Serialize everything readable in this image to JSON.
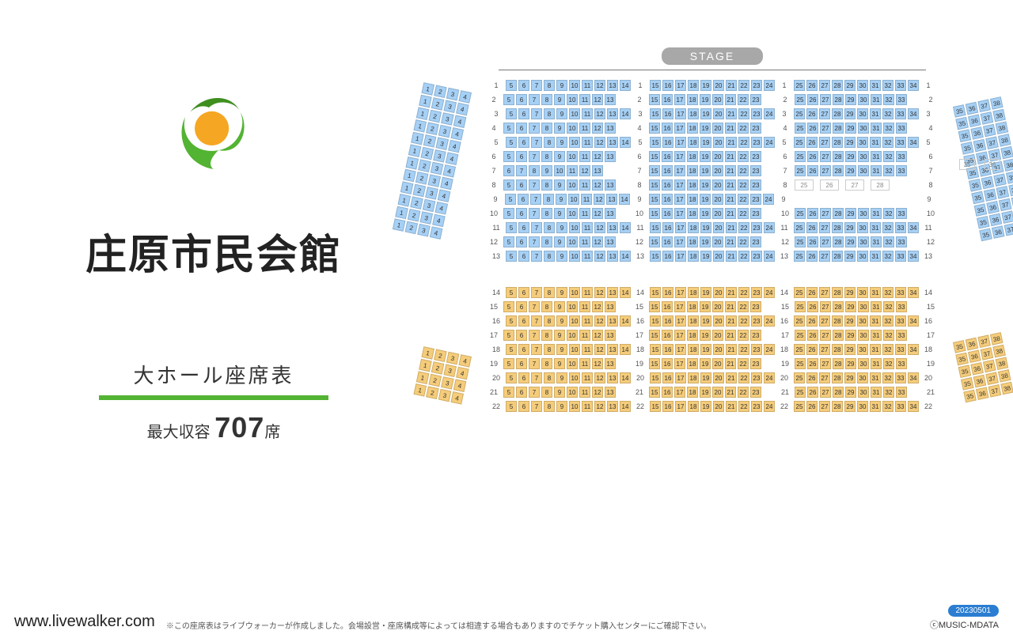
{
  "venue_name": "庄原市民会館",
  "subtitle": "大ホール座席表",
  "capacity_label": "最大収容",
  "capacity_value": "707",
  "capacity_unit": "席",
  "stage_label": "STAGE",
  "site_url": "www.livewalker.com",
  "footer_note": "※この座席表はライブウォーカーが作成しました。会場設営・座席構成等によっては相違する場合もありますのでチケット購入センターにご確認下さい。",
  "date_badge": "20230501",
  "copyright": "ⓒMUSIC-MDATA",
  "colors": {
    "accent_green": "#53b332",
    "logo_orange": "#f5a623",
    "logo_dark_green": "#3f8f1f",
    "section1_seat": "#a6d0f5",
    "section2_seat": "#f5cc7a",
    "seat_border": "#5a8fc0",
    "stage_badge": "#a8a8a8",
    "date_badge": "#2a7dd1"
  },
  "seating": {
    "type": "seating-chart",
    "layout_notes": "Two main seat colors (blue upper, orange lower). Each row split into blocks a(5-14)/b(15-24)/c(25-34). Side wings 1-4 and 35-38 are angled inward. Some rows shorter, row 8 block c has boxed seats 25-28, row 7 right-most has isolated 35 and 36.",
    "sections": [
      {
        "id": "upper",
        "color": "#a6d0f5",
        "rows": [
          {
            "n": 1,
            "a": [
              5,
              14
            ],
            "b": [
              15,
              24
            ],
            "c": [
              25,
              34
            ]
          },
          {
            "n": 2,
            "a": [
              5,
              13
            ],
            "b": [
              15,
              23
            ],
            "c": [
              25,
              33
            ]
          },
          {
            "n": 3,
            "a": [
              5,
              14
            ],
            "b": [
              15,
              24
            ],
            "c": [
              25,
              34
            ]
          },
          {
            "n": 4,
            "a": [
              5,
              13
            ],
            "b": [
              15,
              23
            ],
            "c": [
              25,
              33
            ]
          },
          {
            "n": 5,
            "a": [
              5,
              14
            ],
            "b": [
              15,
              24
            ],
            "c": [
              25,
              34
            ]
          },
          {
            "n": 6,
            "a": [
              5,
              13
            ],
            "b": [
              15,
              23
            ],
            "c": [
              25,
              33
            ]
          },
          {
            "n": 7,
            "a": [
              6,
              13
            ],
            "b": [
              15,
              23
            ],
            "c": [
              25,
              33
            ]
          },
          {
            "n": 8,
            "a": [
              5,
              13
            ],
            "b": [
              15,
              23
            ],
            "c_boxed": [
              25,
              26,
              27,
              28
            ]
          },
          {
            "n": 9,
            "a": [
              5,
              14
            ],
            "b": [
              15,
              24
            ],
            "c": null
          },
          {
            "n": 10,
            "a": [
              5,
              13
            ],
            "b": [
              15,
              23
            ],
            "c": [
              25,
              33
            ]
          },
          {
            "n": 11,
            "a": [
              5,
              14
            ],
            "b": [
              15,
              24
            ],
            "c": [
              25,
              34
            ]
          },
          {
            "n": 12,
            "a": [
              5,
              13
            ],
            "b": [
              15,
              23
            ],
            "c": [
              25,
              33
            ]
          },
          {
            "n": 13,
            "a": [
              5,
              14
            ],
            "b": [
              15,
              24
            ],
            "c": [
              25,
              34
            ]
          }
        ],
        "wing_left": {
          "cols": [
            1,
            4
          ],
          "row_start": 2,
          "row_end": 13
        },
        "wing_right": {
          "cols": [
            35,
            38
          ],
          "row_start": 3,
          "row_end": 13,
          "extra_row7": [
            35,
            36
          ]
        }
      },
      {
        "id": "lower",
        "color": "#f5cc7a",
        "rows": [
          {
            "n": 14,
            "a": [
              5,
              14
            ],
            "b": [
              15,
              24
            ],
            "c": [
              25,
              34
            ]
          },
          {
            "n": 15,
            "a": [
              5,
              13
            ],
            "b": [
              15,
              23
            ],
            "c": [
              25,
              33
            ]
          },
          {
            "n": 16,
            "a": [
              5,
              14
            ],
            "b": [
              15,
              24
            ],
            "c": [
              25,
              34
            ]
          },
          {
            "n": 17,
            "a": [
              5,
              13
            ],
            "b": [
              15,
              23
            ],
            "c": [
              25,
              33
            ]
          },
          {
            "n": 18,
            "a": [
              5,
              14
            ],
            "b": [
              15,
              24
            ],
            "c": [
              25,
              34
            ]
          },
          {
            "n": 19,
            "a": [
              5,
              13
            ],
            "b": [
              15,
              23
            ],
            "c": [
              25,
              33
            ]
          },
          {
            "n": 20,
            "a": [
              5,
              14
            ],
            "b": [
              15,
              24
            ],
            "c": [
              25,
              34
            ]
          },
          {
            "n": 21,
            "a": [
              5,
              13
            ],
            "b": [
              15,
              23
            ],
            "c": [
              25,
              33
            ]
          },
          {
            "n": 22,
            "a": [
              5,
              14
            ],
            "b": [
              15,
              24
            ],
            "c": [
              25,
              34
            ]
          }
        ],
        "wing_left": {
          "cols": [
            1,
            4
          ],
          "row_start": 19,
          "row_end": 22
        },
        "wing_right": {
          "cols": [
            35,
            38
          ],
          "row_start": 18,
          "row_end": 22
        }
      }
    ]
  }
}
